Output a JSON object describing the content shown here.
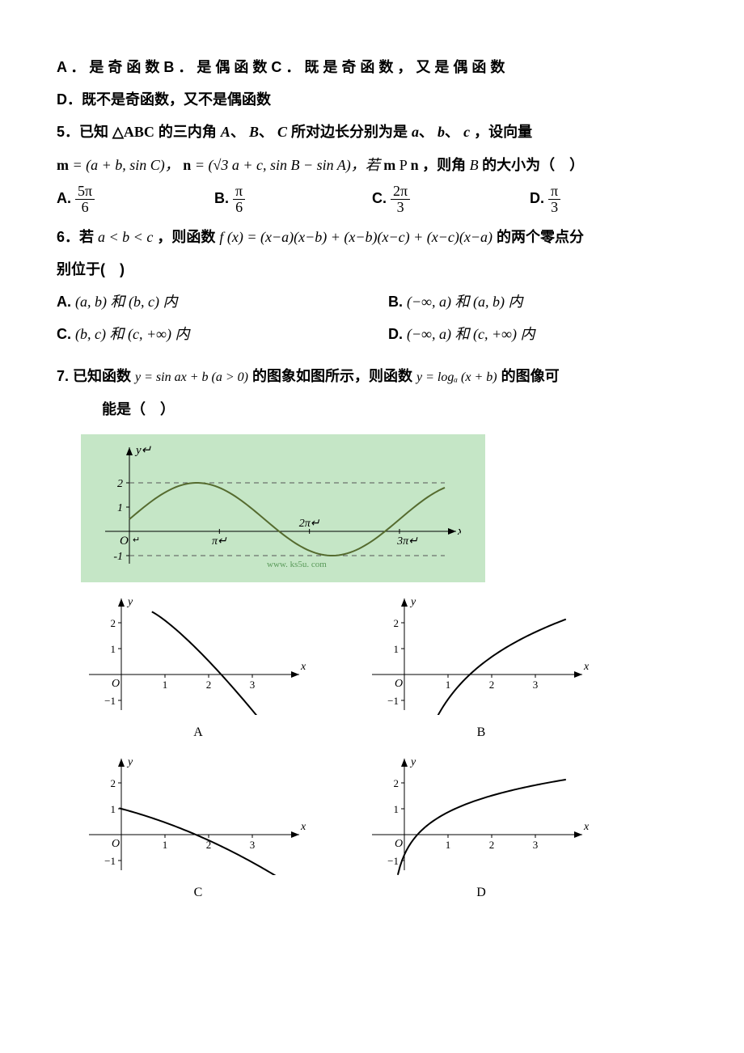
{
  "q4": {
    "optA": "A ． 是 奇 函 数 ",
    "optB": "B ． 是 偶 函 数 ",
    "optC": "C ． 既 是 奇 函 数 ， 又 是 偶 函 数",
    "optD": "D．既不是奇函数，又不是偶函数"
  },
  "q5": {
    "stem_a": "5．已知",
    "tri": "△ABC",
    "stem_b": "的三内角",
    "A": "A",
    "B": "B",
    "C": "C",
    "stem_c": "所对边长分别为是",
    "a": "a",
    "b": "b",
    "c": "c",
    "stem_d": "，设向量",
    "line2_a": "m",
    "line2_b": " = (a + b, sin C)，  ",
    "line2_c": "n",
    "line2_d": " = (√3 a + c, sin B − sin A)，若 ",
    "line2_e": "m",
    "line2_f": " P",
    "line2_g": "n",
    "line2_h": " ，则角",
    "line2_i": "B",
    "line2_j": " 的大小为（　）",
    "optA_label": "A.",
    "optA_num": "5π",
    "optA_den": "6",
    "optB_label": "B.",
    "optB_num": "π",
    "optB_den": "6",
    "optC_label": "C.",
    "optC_num": "2π",
    "optC_den": "3",
    "optD_label": "D.",
    "optD_num": "π",
    "optD_den": "3"
  },
  "q6": {
    "stem_a": "6．若",
    "cond": "a < b < c",
    "stem_b": "，则函数",
    "fx": "f (x) = (x−a)(x−b) + (x−b)(x−c) + (x−c)(x−a)",
    "stem_c": "的两个零点分",
    "stem_d": "别位于(　)",
    "A_lab": "A.",
    "A_txt": "(a, b) 和 (b, c) 内",
    "B_lab": "B.",
    "B_txt": "(−∞, a) 和 (a, b) 内",
    "C_lab": "C.",
    "C_txt": "(b, c) 和 (c, +∞) 内",
    "D_lab": "D.",
    "D_txt": "(−∞, a) 和 (c, +∞) 内"
  },
  "q7": {
    "stem_a": "7.  已知函数",
    "y1": "y = sin ax + b (a > 0)",
    "stem_b": "的图象如图所示，则函数",
    "y2": "y = logₐ (x + b)",
    "stem_c": "的图像可",
    "stem_d": "能是（　）",
    "watermark": "www. ks5u. com",
    "main_graph": {
      "type": "line",
      "background_color": "#c5e6c6",
      "axis_color": "#000000",
      "curve_color": "#556b2f",
      "dash_color": "#555555",
      "y_ticks": [
        {
          "v": 2,
          "label": "2"
        },
        {
          "v": 1,
          "label": "1"
        },
        {
          "v": -1,
          "label": "-1"
        }
      ],
      "x_ticks": [
        {
          "v": 3.14,
          "label": "π"
        },
        {
          "v": 6.28,
          "label": "2π"
        },
        {
          "v": 9.42,
          "label": "3π"
        }
      ],
      "dash_y": [
        2,
        -1
      ],
      "xlim": [
        -0.5,
        11
      ],
      "ylim": [
        -1.5,
        2.8
      ]
    },
    "small_graphs": {
      "common": {
        "axis_color": "#000000",
        "curve_color": "#000000",
        "y_ticks": [
          {
            "v": 2,
            "label": "2"
          },
          {
            "v": 1,
            "label": "1"
          },
          {
            "v": -1,
            "label": "−1"
          }
        ],
        "x_ticks": [
          {
            "v": 1,
            "label": "1"
          },
          {
            "v": 2,
            "label": "2"
          },
          {
            "v": 3,
            "label": "3"
          }
        ],
        "xlim": [
          -0.6,
          3.8
        ],
        "ylim": [
          -1.6,
          2.6
        ]
      },
      "A": {
        "label": "A",
        "desc": "decreasing concave-down through (1,2)→(3.5,-1.3)"
      },
      "B": {
        "label": "B",
        "desc": "increasing concave-down, x-int≈1.5, to (3.5,2)"
      },
      "C": {
        "label": "C",
        "desc": "decreasing concave-down from (0,1)→(3.5,-1.3)"
      },
      "D": {
        "label": "D",
        "desc": "increasing concave-down from below, x-int≈0.3, to (3.5,2)"
      }
    }
  },
  "colors": {
    "text": "#000000",
    "page_bg": "#ffffff",
    "fig_bg": "#c5e6c6"
  }
}
